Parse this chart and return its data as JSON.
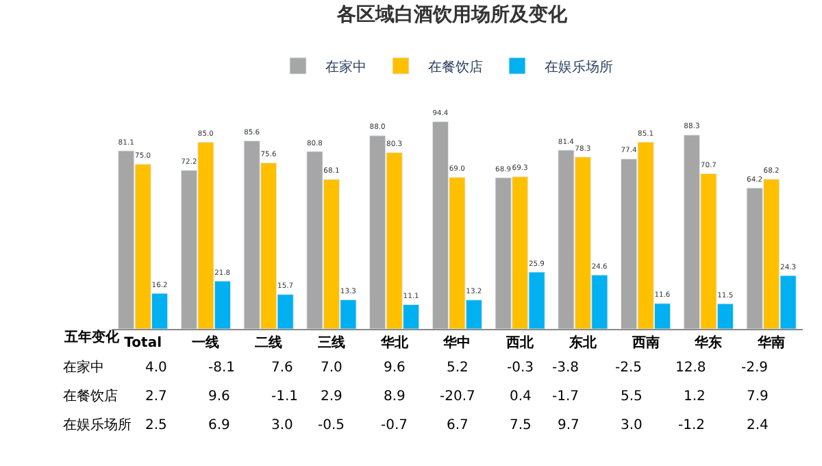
{
  "chart_data": {
    "type": "bar",
    "title": "各区域白酒饮用场所及变化",
    "categories": [
      "Total",
      "一线",
      "二线",
      "三线",
      "华北",
      "华中",
      "西北",
      "东北",
      "西南",
      "华东",
      "华南"
    ],
    "series": [
      {
        "name": "在家中",
        "color": "#a6a6a6",
        "values": [
          81.1,
          72.2,
          85.6,
          80.8,
          88.0,
          94.4,
          68.9,
          81.4,
          77.4,
          88.3,
          64.2
        ],
        "value_labels": [
          "81.1",
          "72.2",
          "85.6",
          "80.8",
          "88.0",
          "94.4",
          "68.9",
          "81.4",
          "77.4",
          "88.3",
          "64.2"
        ]
      },
      {
        "name": "在餐饮店",
        "color": "#ffc000",
        "values": [
          75.0,
          85.0,
          75.6,
          68.1,
          80.3,
          69.0,
          69.3,
          78.3,
          85.1,
          70.7,
          68.2
        ],
        "value_labels": [
          "75.0",
          "85.0",
          "75.6",
          "68.1",
          "80.3",
          "69.0",
          "69.3",
          "78.3",
          "85.1",
          "70.7",
          "68.2"
        ]
      },
      {
        "name": "在娱乐场所",
        "color": "#00b0f0",
        "values": [
          16.2,
          21.8,
          15.7,
          13.3,
          11.1,
          13.2,
          25.9,
          24.6,
          11.6,
          11.5,
          24.3
        ],
        "value_labels": [
          "16.2",
          "21.8",
          "15.7",
          "13.3",
          "11.1",
          "13.2",
          "25.9",
          "24.6",
          "11.6",
          "11.5",
          "24.3"
        ]
      }
    ],
    "legend": "top",
    "tick_labels": "x",
    "annotations": [
      "五年变化",
      "在家中",
      "4.0",
      "-8.1",
      "7.6",
      "7.0",
      "9.6",
      "5.2",
      "-0.3",
      "-3.8",
      "-2.5",
      "12.8",
      "-2.9",
      "在餐饮店",
      "2.7",
      "9.6",
      "-1.1",
      "2.9",
      "8.9",
      "-20.7",
      "0.4",
      "-1.7",
      "5.5",
      "1.2",
      "7.9",
      "在娱乐场所",
      "2.5",
      "6.9",
      "3.0",
      "-0.5",
      "-0.7",
      "6.7",
      "7.5",
      "9.7",
      "3.0",
      "-1.2",
      "2.4"
    ]
  }
}
